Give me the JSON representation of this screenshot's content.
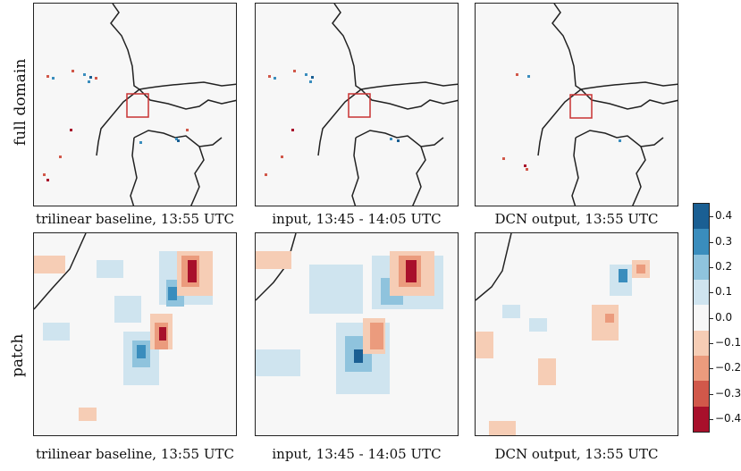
{
  "row_labels": {
    "top": "full domain",
    "bottom": "patch"
  },
  "captions": {
    "r1c1": "trilinear baseline, 13:55 UTC",
    "r1c2": "input, 13:45 - 14:05 UTC",
    "r1c3": "DCN output, 13:55 UTC",
    "r2c1": "trilinear baseline, 13:55 UTC",
    "r2c2": "input, 13:45 - 14:05 UTC",
    "r2c3": "DCN output, 13:55 UTC"
  },
  "colorbar": {
    "ticks": [
      "0.4",
      "0.3",
      "0.2",
      "0.1",
      "0.0",
      "−0.1",
      "−0.2",
      "−0.3",
      "−0.4"
    ],
    "colors_top_to_bottom": [
      "#1a5f93",
      "#3a8dbd",
      "#8fc3dd",
      "#cfe4ef",
      "#f7f7f7",
      "#f6cdb5",
      "#eb9b7d",
      "#d1584a",
      "#a8102b"
    ]
  },
  "accent": {
    "box": "#c83232",
    "border": "#222222"
  }
}
